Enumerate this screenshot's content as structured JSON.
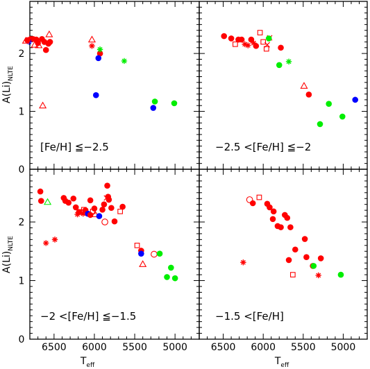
{
  "chart_data": {
    "type": "scatter",
    "x_axis_label": "T",
    "x_axis_label_sub": "eff",
    "y_axis_label": "A(Li)",
    "y_axis_label_sub": "NLTE",
    "x_range": [
      6800,
      4700
    ],
    "y_range": [
      0,
      2.9
    ],
    "x_ticks": [
      6500,
      6000,
      5500,
      5000
    ],
    "x_tick_labels": [
      "6500",
      "6000",
      "5500",
      "5000"
    ],
    "y_ticks": [
      0,
      1,
      2
    ],
    "y_tick_labels": [
      "0",
      "1",
      "2"
    ],
    "colors": {
      "red": "#ff0000",
      "blue": "#0000ff",
      "green": "#00ee00"
    },
    "panels": [
      {
        "label": "[Fe/H] ≦−2.5",
        "points": [
          {
            "x": 6560,
            "y": 2.33,
            "m": "triangle",
            "c": "red"
          },
          {
            "x": 6550,
            "y": 2.2,
            "m": "circle",
            "c": "red"
          },
          {
            "x": 6570,
            "y": 2.17,
            "m": "circle",
            "c": "red"
          },
          {
            "x": 6600,
            "y": 2.06,
            "m": "circle",
            "c": "red"
          },
          {
            "x": 6620,
            "y": 2.2,
            "m": "circle",
            "c": "red"
          },
          {
            "x": 6650,
            "y": 2.25,
            "m": "circle",
            "c": "red"
          },
          {
            "x": 6700,
            "y": 2.18,
            "m": "circle",
            "c": "red"
          },
          {
            "x": 6720,
            "y": 2.24,
            "m": "circle",
            "c": "red"
          },
          {
            "x": 6760,
            "y": 2.25,
            "m": "circle",
            "c": "red"
          },
          {
            "x": 6690,
            "y": 2.14,
            "m": "triangle",
            "c": "red"
          },
          {
            "x": 6740,
            "y": 2.15,
            "m": "triangle",
            "c": "red"
          },
          {
            "x": 6790,
            "y": 2.25,
            "m": "circle",
            "c": "red"
          },
          {
            "x": 6810,
            "y": 2.2,
            "m": "asterisk",
            "c": "blue"
          },
          {
            "x": 6830,
            "y": 2.23,
            "m": "circle",
            "c": "red"
          },
          {
            "x": 6850,
            "y": 2.22,
            "m": "triangle",
            "c": "red"
          },
          {
            "x": 6640,
            "y": 1.1,
            "m": "triangle",
            "c": "red"
          },
          {
            "x": 6030,
            "y": 2.24,
            "m": "triangle",
            "c": "red"
          },
          {
            "x": 6030,
            "y": 2.13,
            "m": "asterisk",
            "c": "red"
          },
          {
            "x": 5930,
            "y": 2.0,
            "m": "circle",
            "c": "red"
          },
          {
            "x": 5950,
            "y": 1.92,
            "m": "circle",
            "c": "blue"
          },
          {
            "x": 5930,
            "y": 2.07,
            "m": "asterisk",
            "c": "green"
          },
          {
            "x": 5630,
            "y": 1.87,
            "m": "asterisk",
            "c": "green"
          },
          {
            "x": 5980,
            "y": 1.28,
            "m": "circle",
            "c": "blue"
          },
          {
            "x": 5270,
            "y": 1.06,
            "m": "circle",
            "c": "blue"
          },
          {
            "x": 5250,
            "y": 1.17,
            "m": "circle",
            "c": "green"
          },
          {
            "x": 5010,
            "y": 1.14,
            "m": "circle",
            "c": "green"
          }
        ]
      },
      {
        "label": "−2.5 <[Fe/H] ≦−2",
        "points": [
          {
            "x": 6490,
            "y": 2.3,
            "m": "circle",
            "c": "red"
          },
          {
            "x": 6400,
            "y": 2.26,
            "m": "circle",
            "c": "red"
          },
          {
            "x": 6350,
            "y": 2.16,
            "m": "square",
            "c": "red"
          },
          {
            "x": 6310,
            "y": 2.24,
            "m": "circle",
            "c": "red"
          },
          {
            "x": 6270,
            "y": 2.24,
            "m": "circle",
            "c": "red"
          },
          {
            "x": 6230,
            "y": 2.16,
            "m": "asterisk",
            "c": "red"
          },
          {
            "x": 6190,
            "y": 2.14,
            "m": "asterisk",
            "c": "red"
          },
          {
            "x": 6150,
            "y": 2.24,
            "m": "circle",
            "c": "red"
          },
          {
            "x": 6120,
            "y": 2.18,
            "m": "asterisk",
            "c": "red"
          },
          {
            "x": 6090,
            "y": 2.13,
            "m": "circle",
            "c": "red"
          },
          {
            "x": 6040,
            "y": 2.36,
            "m": "square",
            "c": "red"
          },
          {
            "x": 6000,
            "y": 2.2,
            "m": "square",
            "c": "red"
          },
          {
            "x": 5960,
            "y": 2.08,
            "m": "square",
            "c": "red"
          },
          {
            "x": 5950,
            "y": 2.15,
            "m": "cross",
            "c": "red"
          },
          {
            "x": 5920,
            "y": 2.27,
            "m": "cross",
            "c": "red"
          },
          {
            "x": 5930,
            "y": 2.26,
            "m": "circle",
            "c": "green"
          },
          {
            "x": 5780,
            "y": 2.1,
            "m": "circle",
            "c": "red"
          },
          {
            "x": 5800,
            "y": 1.8,
            "m": "circle",
            "c": "green"
          },
          {
            "x": 5680,
            "y": 1.86,
            "m": "asterisk",
            "c": "green"
          },
          {
            "x": 5490,
            "y": 1.44,
            "m": "triangle",
            "c": "red"
          },
          {
            "x": 5430,
            "y": 1.29,
            "m": "circle",
            "c": "red"
          },
          {
            "x": 5180,
            "y": 1.13,
            "m": "circle",
            "c": "green"
          },
          {
            "x": 5290,
            "y": 0.78,
            "m": "circle",
            "c": "green"
          },
          {
            "x": 5010,
            "y": 0.91,
            "m": "circle",
            "c": "green"
          },
          {
            "x": 4850,
            "y": 1.2,
            "m": "circle",
            "c": "blue"
          }
        ]
      },
      {
        "label": "−2 <[Fe/H] ≦−1.5",
        "points": [
          {
            "x": 6490,
            "y": 1.7,
            "m": "asterisk",
            "c": "red"
          },
          {
            "x": 6600,
            "y": 1.64,
            "m": "asterisk",
            "c": "red"
          },
          {
            "x": 6670,
            "y": 2.52,
            "m": "circle",
            "c": "red"
          },
          {
            "x": 6660,
            "y": 2.36,
            "m": "circle",
            "c": "red"
          },
          {
            "x": 6580,
            "y": 2.34,
            "m": "triangle",
            "c": "green"
          },
          {
            "x": 6380,
            "y": 2.41,
            "m": "circle",
            "c": "red"
          },
          {
            "x": 6360,
            "y": 2.36,
            "m": "circle",
            "c": "red"
          },
          {
            "x": 6320,
            "y": 2.33,
            "m": "circle",
            "c": "red"
          },
          {
            "x": 6260,
            "y": 2.4,
            "m": "circle",
            "c": "red"
          },
          {
            "x": 6230,
            "y": 2.25,
            "m": "circle",
            "c": "red"
          },
          {
            "x": 6190,
            "y": 2.17,
            "m": "circle",
            "c": "red"
          },
          {
            "x": 6210,
            "y": 2.13,
            "m": "asterisk",
            "c": "red"
          },
          {
            "x": 6140,
            "y": 2.14,
            "m": "asterisk",
            "c": "red"
          },
          {
            "x": 6130,
            "y": 2.21,
            "m": "square",
            "c": "red"
          },
          {
            "x": 6110,
            "y": 2.2,
            "m": "circle",
            "c": "red"
          },
          {
            "x": 6080,
            "y": 2.14,
            "m": "circle",
            "c": "blue"
          },
          {
            "x": 6050,
            "y": 2.12,
            "m": "circle",
            "c": "red"
          },
          {
            "x": 6050,
            "y": 2.37,
            "m": "circle",
            "c": "red"
          },
          {
            "x": 6020,
            "y": 2.18,
            "m": "square",
            "c": "red"
          },
          {
            "x": 6000,
            "y": 2.23,
            "m": "circle",
            "c": "red"
          },
          {
            "x": 5990,
            "y": 2.13,
            "m": "triangle",
            "c": "red"
          },
          {
            "x": 6160,
            "y": 2.17,
            "m": "triangle",
            "c": "red"
          },
          {
            "x": 5940,
            "y": 2.1,
            "m": "circle",
            "c": "blue"
          },
          {
            "x": 5880,
            "y": 2.3,
            "m": "circle",
            "c": "red"
          },
          {
            "x": 5900,
            "y": 2.21,
            "m": "circle",
            "c": "red"
          },
          {
            "x": 5840,
            "y": 2.62,
            "m": "circle",
            "c": "red"
          },
          {
            "x": 5830,
            "y": 2.43,
            "m": "circle",
            "c": "red"
          },
          {
            "x": 5820,
            "y": 2.38,
            "m": "circle",
            "c": "red"
          },
          {
            "x": 5850,
            "y": 2.41,
            "m": "cross",
            "c": "red"
          },
          {
            "x": 5790,
            "y": 2.24,
            "m": "circle",
            "c": "red"
          },
          {
            "x": 5870,
            "y": 2.0,
            "m": "open-circle",
            "c": "red"
          },
          {
            "x": 5750,
            "y": 2.01,
            "m": "circle",
            "c": "red"
          },
          {
            "x": 5680,
            "y": 2.18,
            "m": "square",
            "c": "red"
          },
          {
            "x": 5650,
            "y": 2.26,
            "m": "circle",
            "c": "red"
          },
          {
            "x": 5470,
            "y": 1.6,
            "m": "square",
            "c": "red"
          },
          {
            "x": 5420,
            "y": 1.51,
            "m": "circle",
            "c": "red"
          },
          {
            "x": 5420,
            "y": 1.46,
            "m": "circle",
            "c": "blue"
          },
          {
            "x": 5400,
            "y": 1.28,
            "m": "triangle",
            "c": "red"
          },
          {
            "x": 5260,
            "y": 1.45,
            "m": "open-circle",
            "c": "red"
          },
          {
            "x": 5190,
            "y": 1.46,
            "m": "circle",
            "c": "green"
          },
          {
            "x": 5050,
            "y": 1.22,
            "m": "circle",
            "c": "green"
          },
          {
            "x": 5100,
            "y": 1.06,
            "m": "circle",
            "c": "green"
          },
          {
            "x": 5000,
            "y": 1.04,
            "m": "circle",
            "c": "green"
          }
        ]
      },
      {
        "label": "−1.5 <[Fe/H]",
        "points": [
          {
            "x": 6250,
            "y": 1.31,
            "m": "asterisk",
            "c": "red"
          },
          {
            "x": 6170,
            "y": 2.38,
            "m": "open-circle",
            "c": "red"
          },
          {
            "x": 6130,
            "y": 2.32,
            "m": "circle",
            "c": "red"
          },
          {
            "x": 6050,
            "y": 2.42,
            "m": "square",
            "c": "red"
          },
          {
            "x": 5950,
            "y": 2.31,
            "m": "circle",
            "c": "red"
          },
          {
            "x": 5920,
            "y": 2.25,
            "m": "circle",
            "c": "red"
          },
          {
            "x": 5870,
            "y": 2.18,
            "m": "circle",
            "c": "red"
          },
          {
            "x": 5880,
            "y": 2.05,
            "m": "circle",
            "c": "red"
          },
          {
            "x": 5820,
            "y": 1.93,
            "m": "circle",
            "c": "red"
          },
          {
            "x": 5780,
            "y": 1.91,
            "m": "circle",
            "c": "red"
          },
          {
            "x": 5730,
            "y": 2.12,
            "m": "circle",
            "c": "red"
          },
          {
            "x": 5700,
            "y": 2.07,
            "m": "circle",
            "c": "red"
          },
          {
            "x": 5660,
            "y": 1.91,
            "m": "circle",
            "c": "red"
          },
          {
            "x": 5600,
            "y": 1.53,
            "m": "circle",
            "c": "red"
          },
          {
            "x": 5480,
            "y": 1.71,
            "m": "circle",
            "c": "red"
          },
          {
            "x": 5460,
            "y": 1.4,
            "m": "circle",
            "c": "red"
          },
          {
            "x": 5680,
            "y": 1.35,
            "m": "circle",
            "c": "red"
          },
          {
            "x": 5380,
            "y": 1.25,
            "m": "circle",
            "c": "red"
          },
          {
            "x": 5370,
            "y": 1.25,
            "m": "circle",
            "c": "green"
          },
          {
            "x": 5280,
            "y": 1.38,
            "m": "circle",
            "c": "red"
          },
          {
            "x": 5630,
            "y": 1.1,
            "m": "square",
            "c": "red"
          },
          {
            "x": 5310,
            "y": 1.09,
            "m": "asterisk",
            "c": "red"
          },
          {
            "x": 5030,
            "y": 1.1,
            "m": "circle",
            "c": "green"
          }
        ]
      }
    ]
  }
}
